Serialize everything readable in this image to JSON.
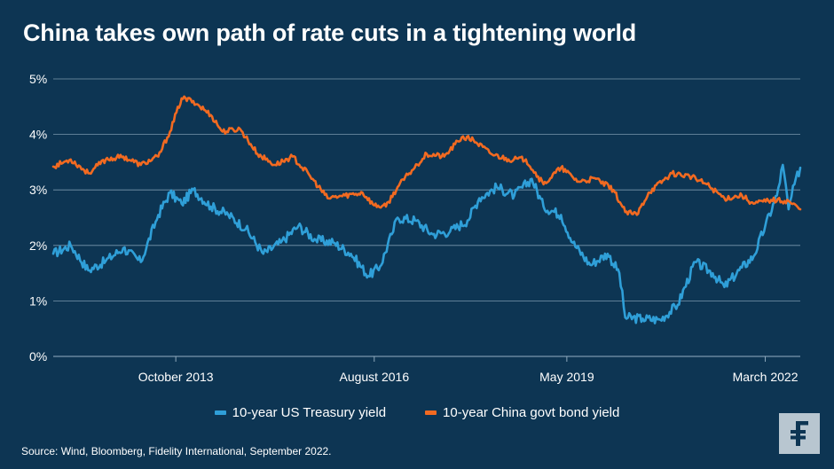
{
  "title": "China takes own path of rate cuts in a tightening world",
  "source": "Source: Wind, Bloomberg, Fidelity International, September 2022.",
  "colors": {
    "background": "#0d3553",
    "us": "#2f9fd8",
    "china": "#f26a21",
    "grid": "#8ea9bd"
  },
  "logo_icon": "fidelity-f-logo",
  "chart_data": {
    "type": "line",
    "title": "China takes own path of rate cuts in a tightening world",
    "xlabel": "",
    "ylabel": "",
    "ylim": [
      0,
      5
    ],
    "yticks": [
      0,
      1,
      2,
      3,
      4,
      5
    ],
    "ytick_labels": [
      "0%",
      "1%",
      "2%",
      "3%",
      "4%",
      "5%"
    ],
    "xlim": [
      "2012-01",
      "2022-09"
    ],
    "xticks": [
      "2013-10",
      "2016-08",
      "2019-05",
      "2022-03"
    ],
    "xtick_labels": [
      "October 2013",
      "August 2016",
      "May 2019",
      "March 2022"
    ],
    "grid": "horizontal",
    "legend_position": "bottom",
    "series": [
      {
        "name": "10-year US Treasury yield",
        "color": "#2f9fd8",
        "points": [
          [
            "2012-01",
            1.85
          ],
          [
            "2012-04",
            2.0
          ],
          [
            "2012-07",
            1.55
          ],
          [
            "2012-10",
            1.72
          ],
          [
            "2013-01",
            1.95
          ],
          [
            "2013-04",
            1.7
          ],
          [
            "2013-07",
            2.55
          ],
          [
            "2013-09",
            2.95
          ],
          [
            "2013-11",
            2.75
          ],
          [
            "2014-01",
            3.0
          ],
          [
            "2014-04",
            2.7
          ],
          [
            "2014-07",
            2.55
          ],
          [
            "2014-10",
            2.3
          ],
          [
            "2015-01",
            1.85
          ],
          [
            "2015-04",
            2.05
          ],
          [
            "2015-07",
            2.35
          ],
          [
            "2015-10",
            2.1
          ],
          [
            "2016-01",
            2.05
          ],
          [
            "2016-04",
            1.85
          ],
          [
            "2016-07",
            1.45
          ],
          [
            "2016-09",
            1.62
          ],
          [
            "2016-11",
            2.2
          ],
          [
            "2016-12",
            2.5
          ],
          [
            "2017-03",
            2.45
          ],
          [
            "2017-06",
            2.2
          ],
          [
            "2017-09",
            2.25
          ],
          [
            "2017-12",
            2.45
          ],
          [
            "2018-02",
            2.85
          ],
          [
            "2018-05",
            3.05
          ],
          [
            "2018-08",
            2.9
          ],
          [
            "2018-11",
            3.2
          ],
          [
            "2019-01",
            2.7
          ],
          [
            "2019-04",
            2.55
          ],
          [
            "2019-06",
            2.05
          ],
          [
            "2019-09",
            1.65
          ],
          [
            "2019-12",
            1.85
          ],
          [
            "2020-02",
            1.5
          ],
          [
            "2020-03",
            0.7
          ],
          [
            "2020-06",
            0.68
          ],
          [
            "2020-09",
            0.66
          ],
          [
            "2020-12",
            0.93
          ],
          [
            "2021-03",
            1.7
          ],
          [
            "2021-06",
            1.5
          ],
          [
            "2021-08",
            1.25
          ],
          [
            "2021-11",
            1.6
          ],
          [
            "2022-01",
            1.8
          ],
          [
            "2022-03",
            2.35
          ],
          [
            "2022-05",
            2.9
          ],
          [
            "2022-06",
            3.45
          ],
          [
            "2022-07",
            2.65
          ],
          [
            "2022-08",
            3.1
          ],
          [
            "2022-09",
            3.4
          ]
        ]
      },
      {
        "name": "10-year China govt bond yield",
        "color": "#f26a21",
        "points": [
          [
            "2012-01",
            3.42
          ],
          [
            "2012-04",
            3.55
          ],
          [
            "2012-07",
            3.3
          ],
          [
            "2012-10",
            3.55
          ],
          [
            "2013-01",
            3.6
          ],
          [
            "2013-04",
            3.45
          ],
          [
            "2013-07",
            3.6
          ],
          [
            "2013-09",
            4.05
          ],
          [
            "2013-11",
            4.65
          ],
          [
            "2014-01",
            4.6
          ],
          [
            "2014-04",
            4.35
          ],
          [
            "2014-06",
            4.05
          ],
          [
            "2014-09",
            4.1
          ],
          [
            "2014-12",
            3.65
          ],
          [
            "2015-03",
            3.45
          ],
          [
            "2015-06",
            3.6
          ],
          [
            "2015-09",
            3.25
          ],
          [
            "2015-12",
            2.85
          ],
          [
            "2016-03",
            2.9
          ],
          [
            "2016-06",
            2.95
          ],
          [
            "2016-08",
            2.72
          ],
          [
            "2016-10",
            2.7
          ],
          [
            "2016-12",
            3.05
          ],
          [
            "2017-02",
            3.3
          ],
          [
            "2017-05",
            3.65
          ],
          [
            "2017-08",
            3.6
          ],
          [
            "2017-11",
            3.95
          ],
          [
            "2018-01",
            3.9
          ],
          [
            "2018-04",
            3.65
          ],
          [
            "2018-07",
            3.55
          ],
          [
            "2018-10",
            3.55
          ],
          [
            "2019-01",
            3.1
          ],
          [
            "2019-04",
            3.4
          ],
          [
            "2019-07",
            3.15
          ],
          [
            "2019-10",
            3.2
          ],
          [
            "2020-01",
            3.0
          ],
          [
            "2020-03",
            2.6
          ],
          [
            "2020-05",
            2.55
          ],
          [
            "2020-07",
            2.95
          ],
          [
            "2020-11",
            3.3
          ],
          [
            "2021-02",
            3.25
          ],
          [
            "2021-05",
            3.1
          ],
          [
            "2021-08",
            2.85
          ],
          [
            "2021-11",
            2.9
          ],
          [
            "2022-01",
            2.75
          ],
          [
            "2022-04",
            2.82
          ],
          [
            "2022-07",
            2.8
          ],
          [
            "2022-09",
            2.65
          ]
        ]
      }
    ]
  }
}
